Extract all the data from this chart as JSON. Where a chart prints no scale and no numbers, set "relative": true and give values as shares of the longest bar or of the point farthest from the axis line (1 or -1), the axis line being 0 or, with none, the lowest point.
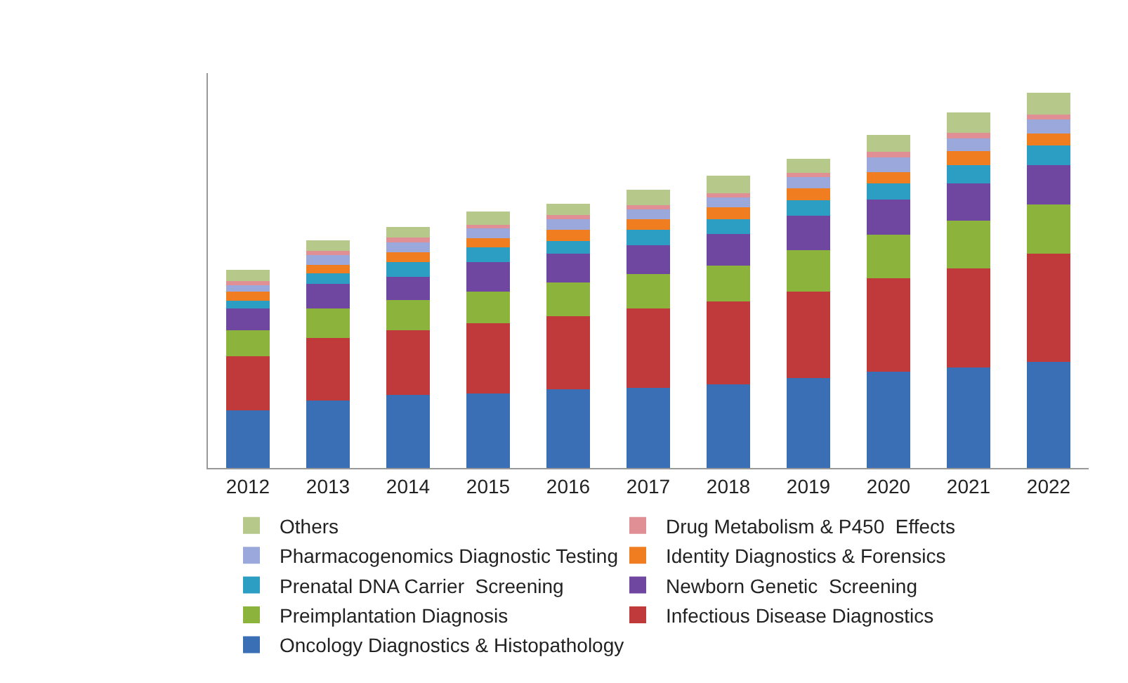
{
  "chart_data": {
    "type": "bar",
    "stacked": true,
    "relative": true,
    "legend": "bottom",
    "categories": [
      "2012",
      "2013",
      "2014",
      "2015",
      "2016",
      "2017",
      "2018",
      "2019",
      "2020",
      "2021",
      "2022"
    ],
    "series": [
      {
        "name": "Oncology Diagnostics & Histopathology",
        "color": "#3a6fb5",
        "values": [
          0.154,
          0.179,
          0.195,
          0.198,
          0.209,
          0.213,
          0.223,
          0.239,
          0.257,
          0.267,
          0.282
        ]
      },
      {
        "name": "Infectious Disease Diagnostics",
        "color": "#c0393b",
        "values": [
          0.144,
          0.168,
          0.172,
          0.187,
          0.195,
          0.212,
          0.22,
          0.231,
          0.248,
          0.265,
          0.289
        ]
      },
      {
        "name": "Preimplantation Diagnosis",
        "color": "#8cb43c",
        "values": [
          0.069,
          0.078,
          0.08,
          0.085,
          0.091,
          0.092,
          0.097,
          0.11,
          0.117,
          0.127,
          0.131
        ]
      },
      {
        "name": "Newborn Genetic  Screening",
        "color": "#6f47a0",
        "values": [
          0.059,
          0.066,
          0.062,
          0.078,
          0.077,
          0.077,
          0.083,
          0.093,
          0.093,
          0.1,
          0.106
        ]
      },
      {
        "name": "Prenatal DNA Carrier  Screening",
        "color": "#2c9ec4",
        "values": [
          0.019,
          0.028,
          0.039,
          0.04,
          0.033,
          0.041,
          0.041,
          0.041,
          0.044,
          0.048,
          0.051
        ]
      },
      {
        "name": "Identity Diagnostics & Forensics",
        "color": "#f07d1f",
        "values": [
          0.025,
          0.023,
          0.027,
          0.025,
          0.03,
          0.028,
          0.03,
          0.031,
          0.03,
          0.037,
          0.032
        ]
      },
      {
        "name": "Pharmacogenomics Diagnostic Testing",
        "color": "#9aa8dc",
        "values": [
          0.017,
          0.025,
          0.026,
          0.025,
          0.028,
          0.027,
          0.028,
          0.03,
          0.039,
          0.035,
          0.038
        ]
      },
      {
        "name": "Drug Metabolism & P450  Effects",
        "color": "#e08f95",
        "values": [
          0.011,
          0.011,
          0.014,
          0.011,
          0.011,
          0.011,
          0.011,
          0.011,
          0.014,
          0.014,
          0.014
        ]
      },
      {
        "name": "Others",
        "color": "#b7c98a",
        "values": [
          0.031,
          0.029,
          0.028,
          0.034,
          0.031,
          0.04,
          0.047,
          0.038,
          0.045,
          0.055,
          0.057
        ]
      }
    ]
  }
}
